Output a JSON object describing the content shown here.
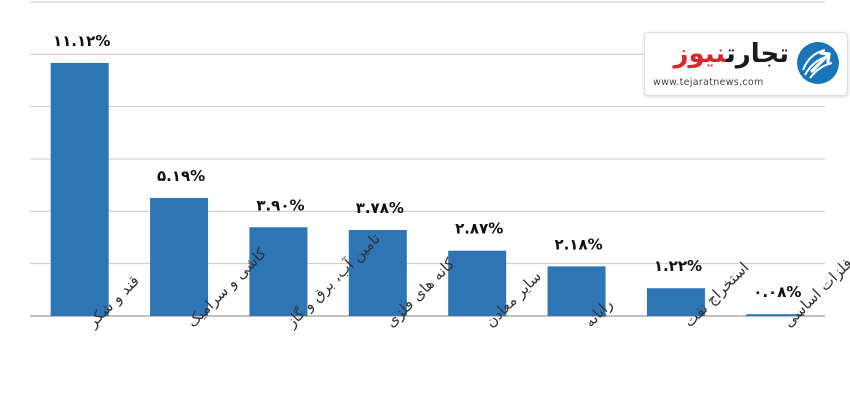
{
  "chart_data": {
    "type": "bar",
    "title": "",
    "categories": [
      "قند و شکر",
      "کاشی و سرامیک",
      "تامین آب، برق و گاز",
      "کانه های فلزی",
      "سایر معادن",
      "رایانه",
      "استخراج نفت",
      "فلزات اساسی"
    ],
    "values": [
      11.12,
      5.19,
      3.9,
      3.78,
      2.87,
      2.18,
      1.22,
      0.08
    ],
    "value_labels": [
      "۱۱.۱۲%",
      "۵.۱۹%",
      "۳.۹۰%",
      "۳.۷۸%",
      "۲.۸۷%",
      "۲.۱۸%",
      "۱.۲۲%",
      "۰.۰۸%"
    ],
    "ylim": [
      0,
      13.8
    ],
    "grid": true,
    "bar_color": "#2e75b6"
  },
  "logo": {
    "name_part1": "تجارت",
    "name_part2": "نیوز",
    "url": "www.tejaratnews.com",
    "icon": "tejarat-news-logo-icon"
  }
}
